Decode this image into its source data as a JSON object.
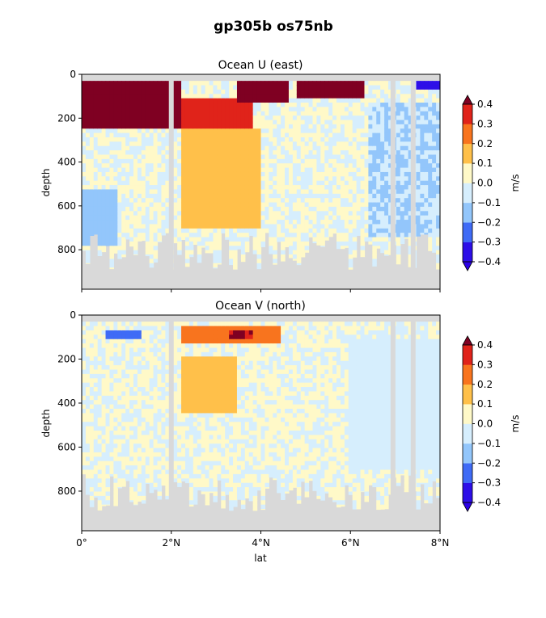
{
  "figure": {
    "title": "gp305b os75nb"
  },
  "chart_data": [
    {
      "type": "heatmap",
      "title": "Ocean U (east)",
      "xlabel": "lat",
      "ylabel": "depth",
      "xlim": [
        0,
        8
      ],
      "ylim": [
        980,
        0
      ],
      "y_ticks": [
        0,
        200,
        400,
        600,
        800
      ],
      "x_ticks": [
        0,
        2,
        4,
        6,
        8
      ],
      "x_tick_labels": [
        "0°",
        "2°N",
        "4°N",
        "6°N",
        "8°N"
      ],
      "colorbar": {
        "label": "m/s",
        "levels": [
          -0.4,
          -0.3,
          -0.2,
          -0.1,
          0.0,
          0.1,
          0.2,
          0.3,
          0.4
        ],
        "tick_labels": [
          "−0.4",
          "−0.3",
          "−0.2",
          "−0.1",
          "0.0",
          "0.1",
          "0.2",
          "0.3",
          "0.4"
        ],
        "extend": "both",
        "under_color": "#2b00e6",
        "over_color": "#7f0022",
        "colors": [
          "#2d0ee8",
          "#3f6bf6",
          "#93c6fb",
          "#d6eefd",
          "#fff9c8",
          "#ffc04a",
          "#f8741e",
          "#e0231a"
        ]
      },
      "no_data_color": "#d9d9d9",
      "gap_columns_lat": [
        2.0,
        6.95,
        7.4
      ],
      "depth_start": 30,
      "bottom_depth_range": [
        720,
        890
      ],
      "features": [
        {
          "lat": [
            0.0,
            2.2
          ],
          "depth": [
            30,
            240
          ],
          "value": 0.45
        },
        {
          "lat": [
            2.2,
            3.8
          ],
          "depth": [
            100,
            300
          ],
          "value": 0.35
        },
        {
          "lat": [
            3.5,
            4.6
          ],
          "depth": [
            30,
            120
          ],
          "value": 0.45
        },
        {
          "lat": [
            4.8,
            6.3
          ],
          "depth": [
            30,
            110
          ],
          "value": 0.45
        },
        {
          "lat": [
            2.2,
            4.0
          ],
          "depth": [
            250,
            700
          ],
          "value": 0.15
        },
        {
          "lat": [
            6.4,
            8.0
          ],
          "depth": [
            120,
            750
          ],
          "value": -0.1
        },
        {
          "lat": [
            0.0,
            0.8
          ],
          "depth": [
            520,
            780
          ],
          "value": -0.15
        },
        {
          "lat": [
            7.5,
            8.0
          ],
          "depth": [
            30,
            60
          ],
          "value": -0.35
        }
      ]
    },
    {
      "type": "heatmap",
      "title": "Ocean V (north)",
      "xlabel": "lat",
      "ylabel": "depth",
      "xlim": [
        0,
        8
      ],
      "ylim": [
        980,
        0
      ],
      "y_ticks": [
        0,
        200,
        400,
        600,
        800
      ],
      "x_ticks": [
        0,
        2,
        4,
        6,
        8
      ],
      "x_tick_labels": [
        "0°",
        "2°N",
        "4°N",
        "6°N",
        "8°N"
      ],
      "colorbar": {
        "label": "m/s",
        "levels": [
          -0.4,
          -0.3,
          -0.2,
          -0.1,
          0.0,
          0.1,
          0.2,
          0.3,
          0.4
        ],
        "tick_labels": [
          "−0.4",
          "−0.3",
          "−0.2",
          "−0.1",
          "0.0",
          "0.1",
          "0.2",
          "0.3",
          "0.4"
        ],
        "extend": "both",
        "under_color": "#2b00e6",
        "over_color": "#7f0022",
        "colors": [
          "#2d0ee8",
          "#3f6bf6",
          "#93c6fb",
          "#d6eefd",
          "#fff9c8",
          "#ffc04a",
          "#f8741e",
          "#e0231a"
        ]
      },
      "no_data_color": "#d9d9d9",
      "gap_columns_lat": [
        2.0,
        6.95,
        7.4
      ],
      "depth_start": 30,
      "bottom_depth_range": [
        720,
        890
      ],
      "features": [
        {
          "lat": [
            0.5,
            1.3
          ],
          "depth": [
            70,
            110
          ],
          "value": -0.25
        },
        {
          "lat": [
            2.2,
            4.4
          ],
          "depth": [
            50,
            120
          ],
          "value": 0.25
        },
        {
          "lat": [
            3.3,
            3.8
          ],
          "depth": [
            70,
            110
          ],
          "value": 0.4
        },
        {
          "lat": [
            2.2,
            3.5
          ],
          "depth": [
            180,
            450
          ],
          "value": 0.15
        },
        {
          "lat": [
            6.0,
            8.0
          ],
          "depth": [
            100,
            700
          ],
          "value": -0.05
        }
      ]
    }
  ]
}
